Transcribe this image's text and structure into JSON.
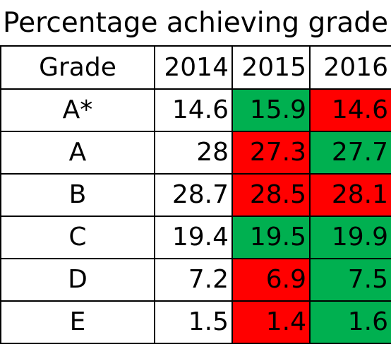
{
  "title": "Percentage achieving grade",
  "header": {
    "grade": "Grade",
    "years": [
      "2014",
      "2015",
      "2016"
    ]
  },
  "colors": {
    "up": "#00b050",
    "down": "#ff0000",
    "neutral": "#ffffff"
  },
  "rows": [
    {
      "grade": "A*",
      "values": [
        {
          "text": "14.6",
          "status": "neutral"
        },
        {
          "text": "15.9",
          "status": "up"
        },
        {
          "text": "14.6",
          "status": "down"
        }
      ]
    },
    {
      "grade": "A",
      "values": [
        {
          "text": "28",
          "status": "neutral"
        },
        {
          "text": "27.3",
          "status": "down"
        },
        {
          "text": "27.7",
          "status": "up"
        }
      ]
    },
    {
      "grade": "B",
      "values": [
        {
          "text": "28.7",
          "status": "neutral"
        },
        {
          "text": "28.5",
          "status": "down"
        },
        {
          "text": "28.1",
          "status": "down"
        }
      ]
    },
    {
      "grade": "C",
      "values": [
        {
          "text": "19.4",
          "status": "neutral"
        },
        {
          "text": "19.5",
          "status": "up"
        },
        {
          "text": "19.9",
          "status": "up"
        }
      ]
    },
    {
      "grade": "D",
      "values": [
        {
          "text": "7.2",
          "status": "neutral"
        },
        {
          "text": "6.9",
          "status": "down"
        },
        {
          "text": "7.5",
          "status": "up"
        }
      ]
    },
    {
      "grade": "E",
      "values": [
        {
          "text": "1.5",
          "status": "neutral"
        },
        {
          "text": "1.4",
          "status": "down"
        },
        {
          "text": "1.6",
          "status": "up"
        }
      ]
    }
  ]
}
